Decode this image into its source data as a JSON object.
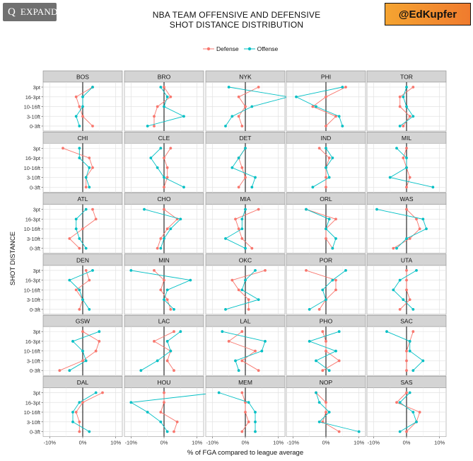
{
  "title_line1": "NBA TEAM OFFENSIVE AND DEFENSIVE",
  "title_line2": "SHOT DISTANCE DISTRIBUTION",
  "overlay": {
    "expand_label": "EXPAND",
    "expand_glyph": "Q"
  },
  "watermark": "@EdKupfer",
  "legend": [
    {
      "label": "Defense",
      "color": "#f8766d"
    },
    {
      "label": "Offense",
      "color": "#00bfc4"
    }
  ],
  "chart_data": {
    "type": "line",
    "title": "NBA TEAM OFFENSIVE AND DEFENSIVE SHOT DISTANCE DISTRIBUTION",
    "xlabel": "% of FGA compared to league average",
    "ylabel": "SHOT DISTANCE",
    "xlim": [
      -12,
      12
    ],
    "x_ticks": [
      -10,
      0,
      10
    ],
    "x_tick_labels": [
      "-10%",
      "0%",
      "10%"
    ],
    "categories": [
      "3pt",
      "16-3pt",
      "10-16ft",
      "3-10ft",
      "0-3ft"
    ],
    "grid": true,
    "legend_position": "top",
    "reference_line_x": 0,
    "facets": [
      {
        "team": "BOS",
        "defense": [
          3,
          -2,
          -1,
          0,
          3
        ],
        "offense": [
          3,
          0,
          0,
          -2,
          -1
        ]
      },
      {
        "team": "BRO",
        "defense": [
          0,
          2,
          -2,
          -3,
          -3
        ],
        "offense": [
          -1,
          1,
          0,
          6,
          -5
        ]
      },
      {
        "team": "NYK",
        "defense": [
          4,
          -2,
          0,
          -2,
          -1
        ],
        "offense": [
          -5,
          13,
          2,
          -4,
          -6
        ]
      },
      {
        "team": "PHI",
        "defense": [
          6,
          0,
          -4,
          3,
          0
        ],
        "offense": [
          5,
          -9,
          -3,
          4,
          5
        ]
      },
      {
        "team": "TOR",
        "defense": [
          2,
          -2,
          -2,
          1,
          -1
        ],
        "offense": [
          0,
          -1,
          0,
          2,
          -2
        ]
      },
      {
        "team": "CHI",
        "defense": [
          -6,
          2,
          3,
          1,
          1
        ],
        "offense": [
          -1,
          -1,
          2,
          1,
          2
        ]
      },
      {
        "team": "CLE",
        "defense": [
          2,
          0,
          1,
          1,
          0
        ],
        "offense": [
          -1,
          -4,
          -2,
          0,
          6
        ]
      },
      {
        "team": "DET",
        "defense": [
          0,
          -2,
          -1,
          0,
          -2
        ],
        "offense": [
          0,
          -2,
          -4,
          3,
          2
        ]
      },
      {
        "team": "IND",
        "defense": [
          -2,
          1,
          0,
          0,
          0
        ],
        "offense": [
          0,
          2,
          0,
          1,
          -4
        ]
      },
      {
        "team": "MIL",
        "defense": [
          0,
          -1,
          0,
          1,
          0
        ],
        "offense": [
          -3,
          0,
          0,
          -5,
          8
        ]
      },
      {
        "team": "ATL",
        "defense": [
          3,
          4,
          0,
          -4,
          -1
        ],
        "offense": [
          1,
          -2,
          -2,
          -1,
          1
        ]
      },
      {
        "team": "CHO",
        "defense": [
          0,
          4,
          1,
          -1,
          -2
        ],
        "offense": [
          -6,
          5,
          2,
          0,
          -1
        ]
      },
      {
        "team": "MIA",
        "defense": [
          4,
          -3,
          -2,
          -1,
          2
        ],
        "offense": [
          0,
          -1,
          -1,
          -6,
          0
        ]
      },
      {
        "team": "ORL",
        "defense": [
          -6,
          3,
          0,
          0,
          2
        ],
        "offense": [
          -6,
          1,
          0,
          3,
          2
        ]
      },
      {
        "team": "WAS",
        "defense": [
          0,
          3,
          4,
          1,
          -4
        ],
        "offense": [
          -9,
          5,
          6,
          0,
          -3
        ]
      },
      {
        "team": "DEN",
        "defense": [
          1,
          2,
          -2,
          0,
          -1
        ],
        "offense": [
          3,
          -4,
          -1,
          0,
          2
        ]
      },
      {
        "team": "MIN",
        "defense": [
          -3,
          0,
          -1,
          1,
          2
        ],
        "offense": [
          -10,
          8,
          1,
          0,
          3
        ]
      },
      {
        "team": "OKC",
        "defense": [
          6,
          -4,
          -2,
          1,
          1
        ],
        "offense": [
          3,
          0,
          -1,
          4,
          -6
        ]
      },
      {
        "team": "POR",
        "defense": [
          -6,
          3,
          3,
          0,
          -2
        ],
        "offense": [
          6,
          2,
          -1,
          0,
          -5
        ]
      },
      {
        "team": "UTA",
        "defense": [
          0,
          0,
          0,
          1,
          -2
        ],
        "offense": [
          3,
          -2,
          -4,
          -1,
          2
        ]
      },
      {
        "team": "GSW",
        "defense": [
          0,
          5,
          4,
          0,
          -7
        ],
        "offense": [
          5,
          -3,
          0,
          1,
          -4
        ]
      },
      {
        "team": "LAC",
        "defense": [
          3,
          -3,
          2,
          1,
          3
        ],
        "offense": [
          5,
          1,
          2,
          -2,
          -7
        ]
      },
      {
        "team": "LAL",
        "defense": [
          -1,
          -5,
          3,
          -1,
          4
        ],
        "offense": [
          -7,
          6,
          5,
          -3,
          -2
        ]
      },
      {
        "team": "PHO",
        "defense": [
          -1,
          0,
          0,
          4,
          -1
        ],
        "offense": [
          4,
          -5,
          3,
          -3,
          1
        ]
      },
      {
        "team": "SAC",
        "defense": [
          2,
          1,
          0,
          0,
          0
        ],
        "offense": [
          -6,
          1,
          1,
          5,
          2
        ]
      },
      {
        "team": "DAL",
        "defense": [
          6,
          0,
          -2,
          -1,
          -1
        ],
        "offense": [
          4,
          -1,
          -3,
          -3,
          2
        ]
      },
      {
        "team": "HOU",
        "defense": [
          0,
          0,
          -1,
          4,
          3
        ],
        "offense": [
          16,
          -10,
          -5,
          -1,
          1
        ]
      },
      {
        "team": "MEM",
        "defense": [
          -1,
          0,
          0,
          1,
          -1
        ],
        "offense": [
          -8,
          1,
          3,
          3,
          3
        ]
      },
      {
        "team": "NOP",
        "defense": [
          -3,
          0,
          0,
          -1,
          4
        ],
        "offense": [
          -3,
          -2,
          1,
          -2,
          10
        ]
      },
      {
        "team": "SAS",
        "defense": [
          0,
          -3,
          4,
          3,
          0
        ],
        "offense": [
          1,
          -2,
          2,
          3,
          -2
        ]
      }
    ]
  }
}
